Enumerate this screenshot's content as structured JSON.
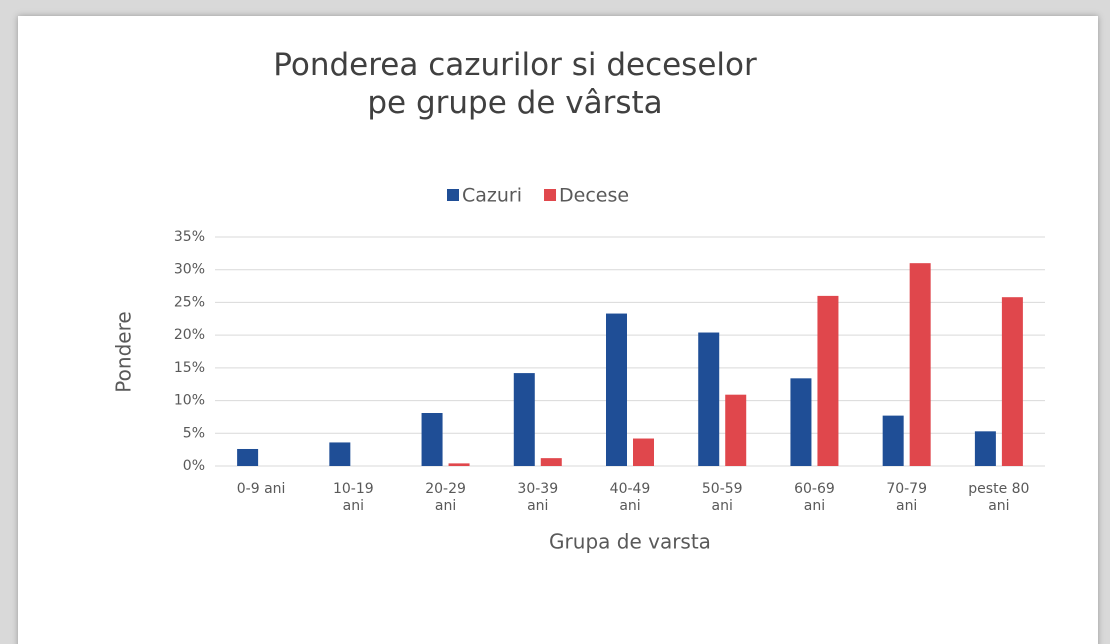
{
  "chart_data": {
    "type": "bar",
    "title": "Ponderea cazurilor si deceselor\npe grupe de vârsta",
    "x_label": "Grupa de varsta",
    "y_label": "Pondere",
    "categories": [
      "0-9 ani",
      "10-19\nani",
      "20-29\nani",
      "30-39\nani",
      "40-49\nani",
      "50-59\nani",
      "60-69\nani",
      "70-79\nani",
      "peste 80\nani"
    ],
    "series": [
      {
        "name": "Cazuri",
        "color": "#1f4e96",
        "values": [
          2.6,
          3.6,
          8.1,
          14.2,
          23.3,
          20.4,
          13.4,
          7.7,
          5.3
        ]
      },
      {
        "name": "Decese",
        "color": "#e0474c",
        "values": [
          0,
          0,
          0.4,
          1.2,
          4.2,
          10.9,
          26,
          31,
          25.8
        ]
      }
    ],
    "ylim": [
      0,
      35
    ],
    "yticks": [
      {
        "value": 0,
        "label": "0%"
      },
      {
        "value": 5,
        "label": "5%"
      },
      {
        "value": 10,
        "label": "10%"
      },
      {
        "value": 15,
        "label": "15%"
      },
      {
        "value": 20,
        "label": "20%"
      },
      {
        "value": 25,
        "label": "25%"
      },
      {
        "value": 30,
        "label": "30%"
      },
      {
        "value": 35,
        "label": "35%"
      }
    ],
    "grid": true,
    "legend": "top"
  }
}
